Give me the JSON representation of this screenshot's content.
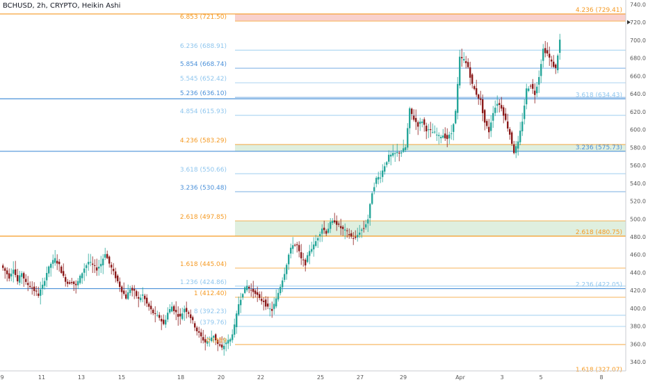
{
  "header": {
    "title": "BCHUSD, 2h, CRYPTO, Heikin Ashi"
  },
  "chart_data": {
    "type": "candlestick",
    "title": "BCHUSD, 2h, CRYPTO, Heikin Ashi",
    "ylim": [
      330,
      745
    ],
    "yticks": [
      340,
      360,
      380,
      400,
      420,
      440,
      460,
      480,
      500,
      520,
      540,
      560,
      580,
      600,
      620,
      640,
      660,
      680,
      700,
      720,
      740
    ],
    "xticks": [
      "9",
      "11",
      "13",
      "15",
      "18",
      "20",
      "22",
      "25",
      "27",
      "29",
      "Apr",
      "3",
      "5",
      "8"
    ],
    "colors": {
      "up": "#26a69a",
      "down": "#8b1a1a",
      "orange": "#f59a23",
      "blue_dark": "#4a90d9",
      "blue_light": "#8fc6ee"
    },
    "fib_left": [
      {
        "label": "6.853 (721.50)",
        "value": 721.5,
        "color": "#f59a23"
      },
      {
        "label": "6.236 (688.91)",
        "value": 688.91,
        "color": "#8fc6ee"
      },
      {
        "label": "5.854 (668.74)",
        "value": 668.74,
        "color": "#4a90d9"
      },
      {
        "label": "5.545 (652.42)",
        "value": 652.42,
        "color": "#8fc6ee"
      },
      {
        "label": "5.236 (636.10)",
        "value": 636.1,
        "color": "#4a90d9"
      },
      {
        "label": "4.854 (615.93)",
        "value": 615.93,
        "color": "#8fc6ee"
      },
      {
        "label": "4.236 (583.29)",
        "value": 583.29,
        "color": "#f59a23"
      },
      {
        "label": "3.618 (550.66)",
        "value": 550.66,
        "color": "#8fc6ee"
      },
      {
        "label": "3.236 (530.48)",
        "value": 530.48,
        "color": "#4a90d9"
      },
      {
        "label": "2.618 (497.85)",
        "value": 497.85,
        "color": "#f59a23"
      },
      {
        "label": "1.618 (445.04)",
        "value": 445.04,
        "color": "#f59a23"
      },
      {
        "label": "1.236 (424.86)",
        "value": 424.86,
        "color": "#8fc6ee"
      },
      {
        "label": "1 (412.40)",
        "value": 412.4,
        "color": "#f59a23"
      },
      {
        "label": "8 (392.23)",
        "value": 392.23,
        "color": "#8fc6ee"
      },
      {
        "label": "(379.76)",
        "value": 379.76,
        "color": "#8fc6ee"
      },
      {
        "label": "0 (359",
        "value": 359.5,
        "color": "#f59a23"
      }
    ],
    "fib_right": [
      {
        "label": "4.236 (729.41)",
        "value": 729.41,
        "color": "#f59a23"
      },
      {
        "label": "3.618 (634.43)",
        "value": 634.43,
        "color": "#8fc6ee"
      },
      {
        "label": "3.236 (575.73)",
        "value": 575.73,
        "color": "#4a90d9"
      },
      {
        "label": "2.618 (480.75)",
        "value": 480.75,
        "color": "#f59a23"
      },
      {
        "label": "2.236 (422.05)",
        "value": 422.05,
        "color": "#8fc6ee"
      },
      {
        "label": "1.618 (327.07)",
        "value": 327.07,
        "color": "#f59a23"
      }
    ],
    "horizontal_lines": [
      {
        "value": 729.41,
        "color": "#f59a23"
      },
      {
        "value": 634.43,
        "color": "#4a90d9"
      },
      {
        "value": 575.73,
        "color": "#4a90d9"
      },
      {
        "value": 480.75,
        "color": "#f59a23"
      },
      {
        "value": 422.05,
        "color": "#4a90d9"
      }
    ],
    "zones": [
      {
        "from": 721.5,
        "to": 729.41,
        "color": "#f8c9c4"
      },
      {
        "from": 575.73,
        "to": 583.29,
        "color": "#d9ecd9"
      },
      {
        "from": 480.75,
        "to": 497.85,
        "color": "#d9ecd9"
      }
    ],
    "price_path": [
      [
        0,
        448
      ],
      [
        6,
        442
      ],
      [
        12,
        435
      ],
      [
        18,
        445
      ],
      [
        24,
        430
      ],
      [
        30,
        440
      ],
      [
        36,
        428
      ],
      [
        42,
        425
      ],
      [
        48,
        420
      ],
      [
        54,
        415
      ],
      [
        60,
        425
      ],
      [
        66,
        440
      ],
      [
        72,
        450
      ],
      [
        78,
        455
      ],
      [
        84,
        448
      ],
      [
        90,
        435
      ],
      [
        96,
        428
      ],
      [
        102,
        430
      ],
      [
        108,
        425
      ],
      [
        114,
        435
      ],
      [
        120,
        445
      ],
      [
        126,
        452
      ],
      [
        132,
        448
      ],
      [
        138,
        444
      ],
      [
        144,
        450
      ],
      [
        150,
        462
      ],
      [
        156,
        450
      ],
      [
        162,
        440
      ],
      [
        168,
        430
      ],
      [
        174,
        420
      ],
      [
        180,
        412
      ],
      [
        186,
        422
      ],
      [
        192,
        418
      ],
      [
        198,
        410
      ],
      [
        204,
        415
      ],
      [
        210,
        405
      ],
      [
        216,
        398
      ],
      [
        222,
        392
      ],
      [
        228,
        390
      ],
      [
        234,
        382
      ],
      [
        240,
        395
      ],
      [
        246,
        402
      ],
      [
        252,
        395
      ],
      [
        258,
        390
      ],
      [
        264,
        400
      ],
      [
        270,
        395
      ],
      [
        276,
        385
      ],
      [
        282,
        375
      ],
      [
        288,
        368
      ],
      [
        294,
        362
      ],
      [
        300,
        365
      ],
      [
        306,
        370
      ],
      [
        312,
        360
      ],
      [
        318,
        355
      ],
      [
        324,
        362
      ],
      [
        330,
        365
      ],
      [
        336,
        380
      ],
      [
        342,
        405
      ],
      [
        348,
        418
      ],
      [
        354,
        425
      ],
      [
        360,
        420
      ],
      [
        366,
        418
      ],
      [
        372,
        410
      ],
      [
        378,
        408
      ],
      [
        384,
        400
      ],
      [
        390,
        398
      ],
      [
        396,
        410
      ],
      [
        402,
        425
      ],
      [
        408,
        440
      ],
      [
        414,
        460
      ],
      [
        420,
        472
      ],
      [
        426,
        470
      ],
      [
        432,
        455
      ],
      [
        438,
        450
      ],
      [
        444,
        465
      ],
      [
        450,
        470
      ],
      [
        456,
        480
      ],
      [
        462,
        490
      ],
      [
        468,
        485
      ],
      [
        474,
        495
      ],
      [
        480,
        498
      ],
      [
        486,
        492
      ],
      [
        492,
        488
      ],
      [
        498,
        485
      ],
      [
        504,
        480
      ],
      [
        510,
        478
      ],
      [
        516,
        486
      ],
      [
        522,
        490
      ],
      [
        528,
        500
      ],
      [
        534,
        530
      ],
      [
        540,
        545
      ],
      [
        546,
        548
      ],
      [
        552,
        560
      ],
      [
        558,
        570
      ],
      [
        564,
        572
      ],
      [
        570,
        574
      ],
      [
        576,
        575
      ],
      [
        582,
        580
      ],
      [
        588,
        622
      ],
      [
        594,
        612
      ],
      [
        600,
        605
      ],
      [
        606,
        610
      ],
      [
        612,
        600
      ],
      [
        618,
        598
      ],
      [
        624,
        596
      ],
      [
        630,
        592
      ],
      [
        636,
        594
      ],
      [
        642,
        590
      ],
      [
        648,
        596
      ],
      [
        654,
        620
      ],
      [
        660,
        680
      ],
      [
        666,
        678
      ],
      [
        672,
        670
      ],
      [
        678,
        650
      ],
      [
        684,
        640
      ],
      [
        690,
        632
      ],
      [
        696,
        608
      ],
      [
        702,
        598
      ],
      [
        708,
        620
      ],
      [
        714,
        630
      ],
      [
        720,
        625
      ],
      [
        726,
        610
      ],
      [
        732,
        595
      ],
      [
        738,
        575
      ],
      [
        744,
        585
      ],
      [
        750,
        610
      ],
      [
        756,
        645
      ],
      [
        762,
        650
      ],
      [
        768,
        640
      ],
      [
        774,
        660
      ],
      [
        780,
        690
      ],
      [
        786,
        685
      ],
      [
        792,
        675
      ],
      [
        798,
        668
      ],
      [
        804,
        700
      ]
    ]
  }
}
